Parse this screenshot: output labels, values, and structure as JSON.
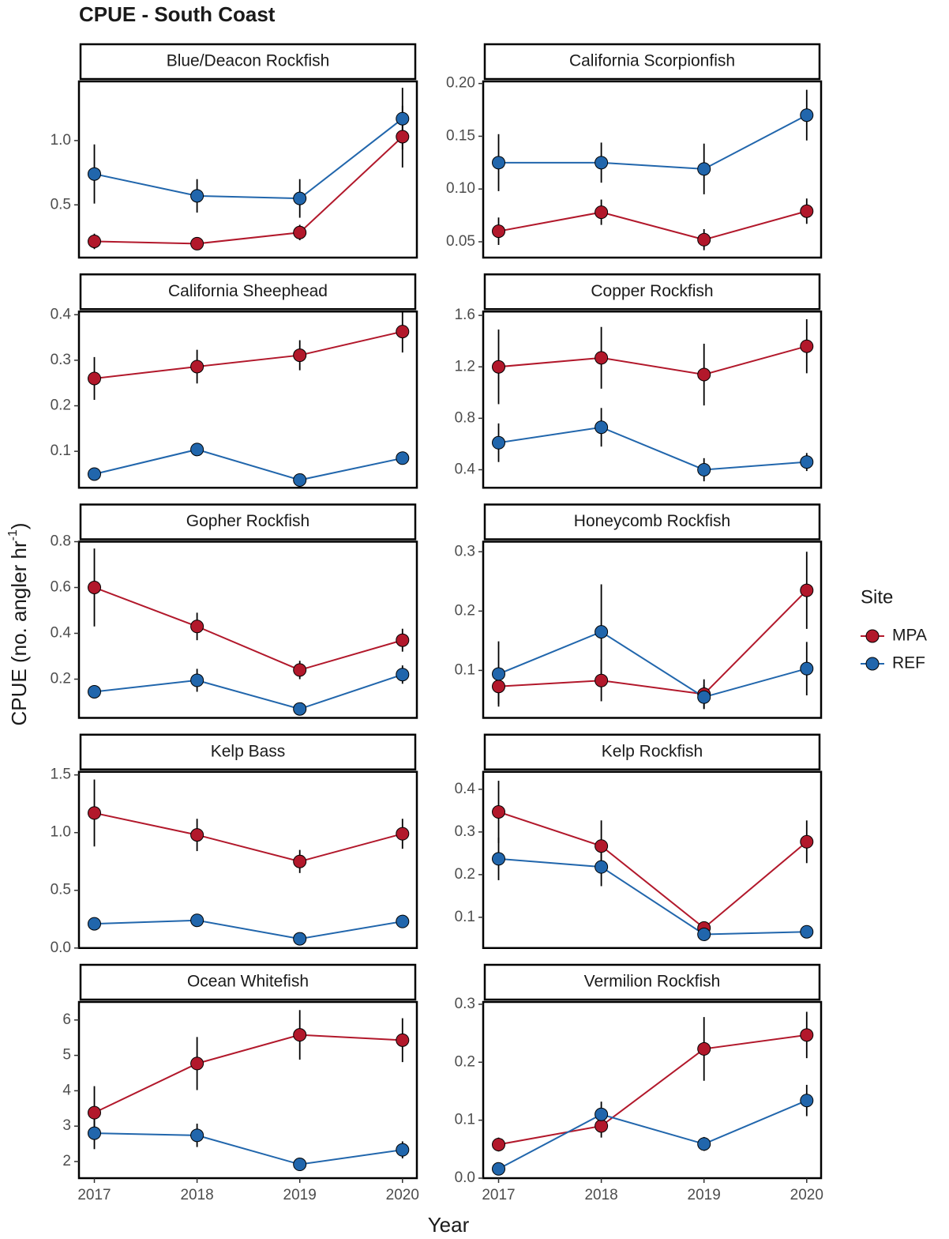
{
  "title": "CPUE - South Coast",
  "x_label": "Year",
  "y_label": [
    "CPUE (no. angler hr",
    "-1",
    ")"
  ],
  "legend": {
    "title": "Site",
    "sites": [
      {
        "name": "MPA",
        "color": "#b2182b"
      },
      {
        "name": "REF",
        "color": "#2166ac"
      }
    ]
  },
  "chart_data": [
    {
      "type": "line",
      "title": "Blue/Deacon Rockfish",
      "x": [
        2017,
        2018,
        2019,
        2020
      ],
      "xlim": [
        2016.85,
        2020.14
      ],
      "ylim": [
        0.09,
        1.46
      ],
      "yticks": [
        0.5,
        {
          "value": 1,
          "label": "1.0"
        }
      ],
      "series": [
        {
          "values": [
            0.216,
            0.198,
            0.285,
            1.03
          ],
          "errors": [
            0.06,
            0.03,
            0.06,
            0.24
          ]
        },
        {
          "values": [
            0.74,
            0.57,
            0.55,
            1.17
          ],
          "errors": [
            0.23,
            0.13,
            0.15,
            0.24
          ]
        }
      ]
    },
    {
      "type": "line",
      "title": "California Scorpionfish",
      "x": [
        2017,
        2018,
        2019,
        2020
      ],
      "xlim": [
        2016.85,
        2020.14
      ],
      "ylim": [
        0.035,
        0.202
      ],
      "yticks": [
        0.05,
        {
          "value": 0.1,
          "label": "0.10"
        },
        0.15,
        {
          "value": 0.2,
          "label": "0.20"
        }
      ],
      "series": [
        {
          "values": [
            0.06,
            0.078,
            0.052,
            0.079
          ],
          "errors": [
            0.013,
            0.012,
            0.01,
            0.012
          ]
        },
        {
          "values": [
            0.125,
            0.125,
            0.119,
            0.17
          ],
          "errors": [
            0.027,
            0.019,
            0.024,
            0.024
          ]
        }
      ]
    },
    {
      "type": "line",
      "title": "California Sheephead",
      "x": [
        2017,
        2018,
        2019,
        2020
      ],
      "xlim": [
        2016.85,
        2020.14
      ],
      "ylim": [
        0.02,
        0.407
      ],
      "yticks": [
        0.1,
        0.2,
        0.3,
        0.4
      ],
      "series": [
        {
          "values": [
            0.26,
            0.286,
            0.311,
            0.363
          ],
          "errors": [
            0.047,
            0.037,
            0.033,
            0.046
          ]
        },
        {
          "values": [
            0.05,
            0.104,
            0.037,
            0.085
          ],
          "errors": [
            0.007,
            0.01,
            0.008,
            0.01
          ]
        }
      ]
    },
    {
      "type": "line",
      "title": "Copper Rockfish",
      "x": [
        2017,
        2018,
        2019,
        2020
      ],
      "xlim": [
        2016.85,
        2020.14
      ],
      "ylim": [
        0.26,
        1.63
      ],
      "yticks": [
        0.4,
        0.8,
        1.2,
        1.6
      ],
      "series": [
        {
          "values": [
            1.2,
            1.27,
            1.14,
            1.36
          ],
          "errors": [
            0.29,
            0.24,
            0.24,
            0.21
          ]
        },
        {
          "values": [
            0.61,
            0.73,
            0.4,
            0.46
          ],
          "errors": [
            0.15,
            0.15,
            0.09,
            0.07
          ]
        }
      ]
    },
    {
      "type": "line",
      "title": "Gopher Rockfish",
      "x": [
        2017,
        2018,
        2019,
        2020
      ],
      "xlim": [
        2016.85,
        2020.14
      ],
      "ylim": [
        0.031,
        0.8
      ],
      "yticks": [
        0.2,
        0.4,
        0.6,
        0.8
      ],
      "series": [
        {
          "values": [
            0.6,
            0.43,
            0.24,
            0.37
          ],
          "errors": [
            0.17,
            0.06,
            0.04,
            0.05
          ]
        },
        {
          "values": [
            0.145,
            0.195,
            0.07,
            0.22
          ],
          "errors": [
            0.02,
            0.05,
            0.02,
            0.04
          ]
        }
      ]
    },
    {
      "type": "line",
      "title": "Honeycomb Rockfish",
      "x": [
        2017,
        2018,
        2019,
        2020
      ],
      "xlim": [
        2016.85,
        2020.14
      ],
      "ylim": [
        0.02,
        0.317
      ],
      "yticks": [
        0.1,
        0.2,
        0.3
      ],
      "series": [
        {
          "values": [
            0.073,
            0.083,
            0.06,
            0.235
          ],
          "errors": [
            0.03,
            0.035,
            0.025,
            0.065
          ]
        },
        {
          "values": [
            0.094,
            0.165,
            0.055,
            0.103
          ],
          "errors": [
            0.055,
            0.08,
            0.02,
            0.045
          ]
        }
      ]
    },
    {
      "type": "line",
      "title": "Kelp Bass",
      "x": [
        2017,
        2018,
        2019,
        2020
      ],
      "xlim": [
        2016.85,
        2020.14
      ],
      "ylim": [
        0,
        1.527
      ],
      "yticks": [
        {
          "value": 0,
          "label": "0.0"
        },
        0.5,
        {
          "value": 1,
          "label": "1.0"
        },
        1.5
      ],
      "series": [
        {
          "values": [
            1.17,
            0.98,
            0.75,
            0.99
          ],
          "errors": [
            0.29,
            0.14,
            0.1,
            0.13
          ]
        },
        {
          "values": [
            0.21,
            0.24,
            0.08,
            0.23
          ],
          "errors": [
            0.03,
            0.04,
            0.03,
            0.04
          ]
        }
      ]
    },
    {
      "type": "line",
      "title": "Kelp Rockfish",
      "x": [
        2017,
        2018,
        2019,
        2020
      ],
      "xlim": [
        2016.85,
        2020.14
      ],
      "ylim": [
        0.028,
        0.441
      ],
      "yticks": [
        0.1,
        0.2,
        0.3,
        0.4
      ],
      "series": [
        {
          "values": [
            0.347,
            0.267,
            0.075,
            0.277
          ],
          "errors": [
            0.073,
            0.06,
            0.015,
            0.05
          ]
        },
        {
          "values": [
            0.237,
            0.218,
            0.06,
            0.066
          ],
          "errors": [
            0.05,
            0.045,
            0.01,
            0.008
          ]
        }
      ]
    },
    {
      "type": "line",
      "title": "Ocean Whitefish",
      "x": [
        2017,
        2018,
        2019,
        2020
      ],
      "xlim": [
        2016.85,
        2020.14
      ],
      "ylim": [
        1.53,
        6.51
      ],
      "xticks": [
        2017,
        2018,
        2019,
        2020
      ],
      "yticks": [
        2,
        3,
        4,
        5,
        6
      ],
      "series": [
        {
          "values": [
            3.38,
            4.77,
            5.58,
            5.43
          ],
          "errors": [
            0.75,
            0.75,
            0.7,
            0.62
          ]
        },
        {
          "values": [
            2.8,
            2.74,
            1.92,
            2.33
          ],
          "errors": [
            0.45,
            0.33,
            0.12,
            0.24
          ]
        }
      ]
    },
    {
      "type": "line",
      "title": "Vermilion Rockfish",
      "x": [
        2017,
        2018,
        2019,
        2020
      ],
      "xlim": [
        2016.85,
        2020.14
      ],
      "ylim": [
        0,
        0.304
      ],
      "xticks": [
        2017,
        2018,
        2019,
        2020
      ],
      "yticks": [
        {
          "value": 0,
          "label": "0.0"
        },
        0.1,
        0.2,
        0.3
      ],
      "series": [
        {
          "values": [
            0.058,
            0.09,
            0.223,
            0.247
          ],
          "errors": [
            0.012,
            0.02,
            0.055,
            0.04
          ]
        },
        {
          "values": [
            0.016,
            0.11,
            0.059,
            0.134
          ],
          "errors": [
            0.006,
            0.022,
            0.012,
            0.027
          ]
        }
      ]
    }
  ]
}
